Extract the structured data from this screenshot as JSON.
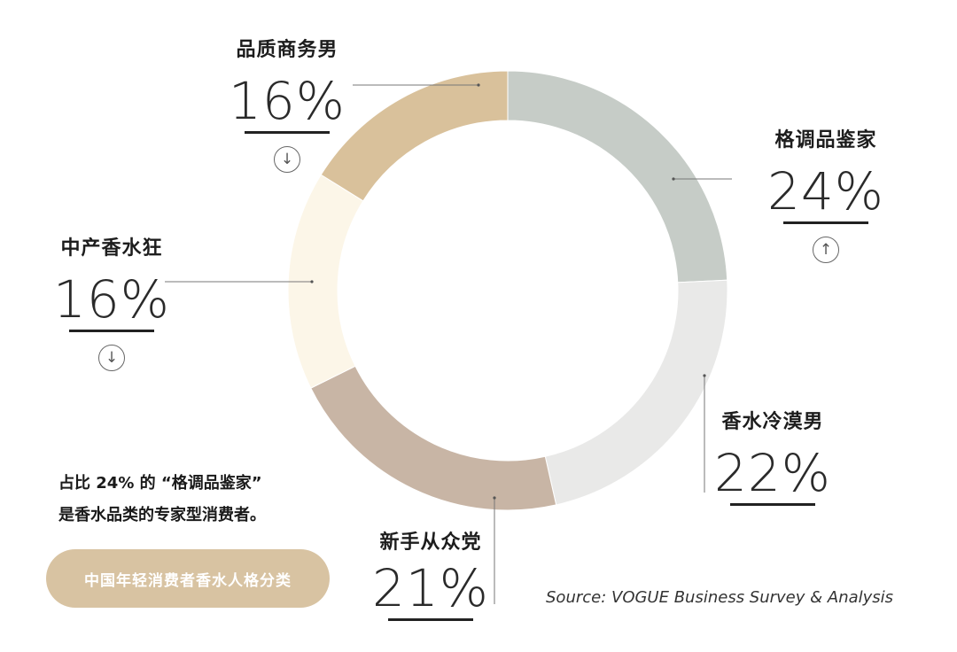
{
  "chart_data": {
    "type": "pie",
    "style": "donut",
    "slices": [
      {
        "label": "格调品鉴家",
        "value": 24,
        "value_text": "24%",
        "color": "#c6ccc7",
        "trend": "up"
      },
      {
        "label": "香水冷漠男",
        "value": 22,
        "value_text": "22%",
        "color": "#e9e9e8",
        "trend": ""
      },
      {
        "label": "新手从众党",
        "value": 21,
        "value_text": "21%",
        "color": "#c8b5a5",
        "trend": ""
      },
      {
        "label": "中产香水狂",
        "value": 16,
        "value_text": "16%",
        "color": "#fcf6e8",
        "trend": "down"
      },
      {
        "label": "品质商务男",
        "value": 16,
        "value_text": "16%",
        "color": "#d9c19b",
        "trend": "down"
      }
    ],
    "start_angle_deg": 0,
    "direction": "clockwise",
    "legend": "none"
  },
  "icons": {
    "up": "↑",
    "down": "↓"
  },
  "note": {
    "line1": "占比 24% 的 “格调品鉴家”",
    "line2": "是香水品类的专家型消费者。"
  },
  "pill_label": "中国年轻消费者香水人格分类",
  "source": "Source: VOGUE Business Survey & Analysis"
}
